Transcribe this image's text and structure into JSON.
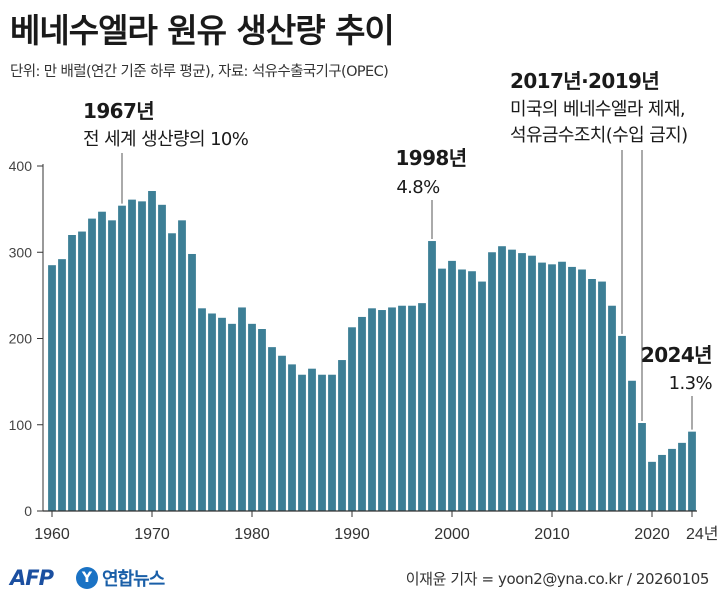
{
  "title": "베네수엘라 원유 생산량 추이",
  "subtitle": "단위: 만 배럴(연간 기준 하루 평균), 자료: 석유수출국기구(OPEC)",
  "footer": {
    "afp_logo": "AFP",
    "yonhap_logo": "연합뉴스",
    "credit": "이재윤 기자 = yoon2@yna.co.kr / 20260105"
  },
  "colors": {
    "bar": "#3d7f96",
    "text": "#1a1a1a",
    "axis": "#333333",
    "annotation_line": "#555555"
  },
  "chart_data": {
    "type": "bar",
    "title": "베네수엘라 원유 생산량 추이",
    "xlabel": "",
    "ylabel": "",
    "unit": "만 배럴(연간 기준 하루 평균)",
    "x": [
      1960,
      1961,
      1962,
      1963,
      1964,
      1965,
      1966,
      1967,
      1968,
      1969,
      1970,
      1971,
      1972,
      1973,
      1974,
      1975,
      1976,
      1977,
      1978,
      1979,
      1980,
      1981,
      1982,
      1983,
      1984,
      1985,
      1986,
      1987,
      1988,
      1989,
      1990,
      1991,
      1992,
      1993,
      1994,
      1995,
      1996,
      1997,
      1998,
      1999,
      2000,
      2001,
      2002,
      2003,
      2004,
      2005,
      2006,
      2007,
      2008,
      2009,
      2010,
      2011,
      2012,
      2013,
      2014,
      2015,
      2016,
      2017,
      2018,
      2019,
      2020,
      2021,
      2022,
      2023,
      2024
    ],
    "values": [
      285,
      292,
      320,
      324,
      339,
      347,
      337,
      354,
      361,
      359,
      371,
      355,
      322,
      337,
      298,
      235,
      229,
      224,
      217,
      236,
      217,
      211,
      190,
      180,
      170,
      158,
      165,
      158,
      158,
      175,
      213,
      225,
      235,
      233,
      236,
      238,
      238,
      241,
      313,
      281,
      290,
      280,
      278,
      266,
      300,
      307,
      303,
      299,
      296,
      288,
      286,
      289,
      283,
      280,
      269,
      266,
      238,
      203,
      151,
      102,
      57,
      65,
      72,
      79,
      92
    ],
    "ylim": [
      0,
      400
    ],
    "yticks": [
      0,
      100,
      200,
      300,
      400
    ],
    "xticks": [
      "1960",
      "1970",
      "1980",
      "1990",
      "2000",
      "2010",
      "2020",
      "24년"
    ],
    "grid": false,
    "annotations": [
      {
        "year": 1967,
        "label": "1967년",
        "note": "전 세계 생산량의 10%"
      },
      {
        "year": 1998,
        "label": "1998년",
        "note": "4.8%"
      },
      {
        "years": [
          2017,
          2019
        ],
        "label": "2017년·2019년",
        "note_lines": [
          "미국의 베네수엘라 제재,",
          "석유금수조치(수입 금지)"
        ]
      },
      {
        "year": 2024,
        "label": "2024년",
        "note": "1.3%"
      }
    ]
  }
}
